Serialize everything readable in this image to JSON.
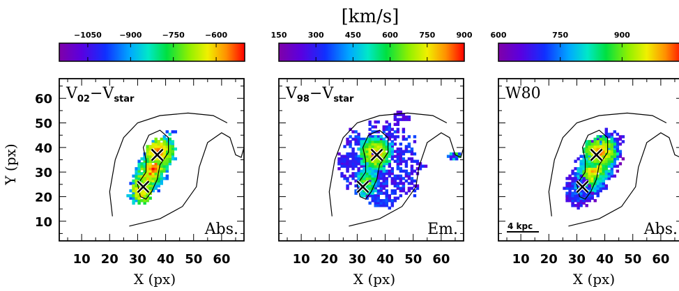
{
  "chart_data": {
    "type": "heatmap",
    "unit_label": "[km/s]",
    "xlabel": "X (px)",
    "ylabel": "Y (px)",
    "xlim": [
      2,
      68
    ],
    "ylim": [
      2,
      68
    ],
    "x_ticks": [
      10,
      20,
      30,
      40,
      50,
      60
    ],
    "y_ticks": [
      10,
      20,
      30,
      40,
      50,
      60
    ],
    "x_tick_labels": [
      "10",
      "20",
      "30",
      "40",
      "50",
      "60"
    ],
    "y_tick_labels": [
      "10",
      "20",
      "30",
      "40",
      "50",
      "60"
    ],
    "markers": [
      {
        "symbol": "x",
        "x": 37,
        "y": 37
      },
      {
        "symbol": "x",
        "x": 32,
        "y": 24
      }
    ],
    "colormap": "rainbow (purple-blue-cyan-green-yellow-red)",
    "panels": [
      {
        "title_main": "V",
        "title_sub": "02",
        "title_minus": "−V",
        "title_sub2": "star",
        "corner_label": "Abs.",
        "scale_bar_label": "",
        "colorbar": {
          "vmin": -1150,
          "vmax": -500,
          "ticks": [
            -1050,
            -900,
            -750,
            -600
          ],
          "tick_labels": [
            "−1050",
            "−900",
            "−750",
            "−600"
          ]
        }
      },
      {
        "title_main": "V",
        "title_sub": "98",
        "title_minus": "−V",
        "title_sub2": "star",
        "corner_label": "Em.",
        "scale_bar_label": "",
        "colorbar": {
          "vmin": 150,
          "vmax": 900,
          "ticks": [
            150,
            300,
            450,
            600,
            750,
            900
          ],
          "tick_labels": [
            "150",
            "300",
            "450",
            "600",
            "750",
            "900"
          ]
        }
      },
      {
        "title_main": "W80",
        "title_sub": "",
        "title_minus": "",
        "title_sub2": "",
        "corner_label": "Abs.",
        "scale_bar_label": "4 kpc",
        "colorbar": {
          "vmin": 600,
          "vmax": 1050,
          "ticks": [
            600,
            750,
            900
          ],
          "tick_labels": [
            "600",
            "750",
            "900"
          ]
        }
      }
    ]
  }
}
